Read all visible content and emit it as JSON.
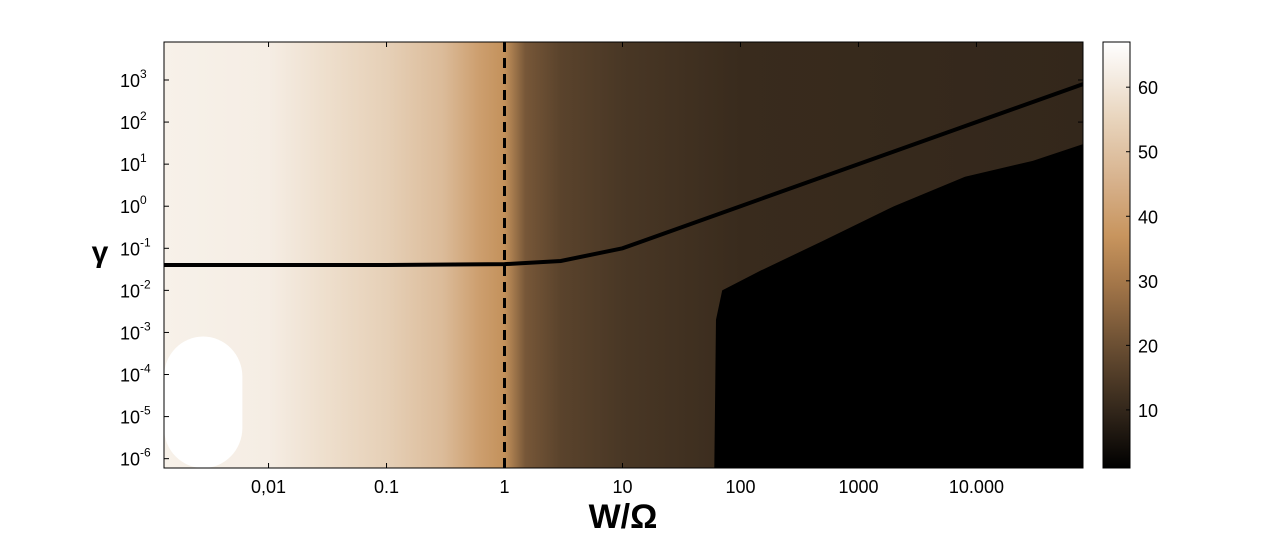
{
  "chart_data": {
    "type": "heatmap",
    "xlabel": "W/Ω",
    "ylabel": "γ",
    "x_scale": "log",
    "y_scale": "log",
    "xlim": [
      0.0013,
      80000
    ],
    "ylim": [
      6e-07,
      8000
    ],
    "x_ticks": [
      {
        "value": 0.01,
        "label": "0,01"
      },
      {
        "value": 0.1,
        "label": "0.1"
      },
      {
        "value": 1,
        "label": "1"
      },
      {
        "value": 10,
        "label": "10"
      },
      {
        "value": 100,
        "label": "100"
      },
      {
        "value": 1000,
        "label": "1000"
      },
      {
        "value": 10000,
        "label": "10.000"
      }
    ],
    "y_ticks": [
      {
        "exp": 3,
        "base": "10",
        "sup": "3"
      },
      {
        "exp": 2,
        "base": "10",
        "sup": "2"
      },
      {
        "exp": 1,
        "base": "10",
        "sup": "1"
      },
      {
        "exp": 0,
        "base": "10",
        "sup": "0"
      },
      {
        "exp": -1,
        "base": "10",
        "sup": "-1"
      },
      {
        "exp": -2,
        "base": "10",
        "sup": "-2"
      },
      {
        "exp": -3,
        "base": "10",
        "sup": "-3"
      },
      {
        "exp": -4,
        "base": "10",
        "sup": "-4"
      },
      {
        "exp": -5,
        "base": "10",
        "sup": "-5"
      },
      {
        "exp": -6,
        "base": "10",
        "sup": "-6"
      }
    ],
    "colorbar": {
      "min": 1,
      "max": 67,
      "ticks": [
        {
          "value": 10,
          "label": "10"
        },
        {
          "value": 20,
          "label": "20"
        },
        {
          "value": 30,
          "label": "30"
        },
        {
          "value": 40,
          "label": "40"
        },
        {
          "value": 50,
          "label": "50"
        },
        {
          "value": 60,
          "label": "60"
        }
      ],
      "colors": [
        {
          "value": 1,
          "color": "#000000"
        },
        {
          "value": 10,
          "color": "#33271b"
        },
        {
          "value": 20,
          "color": "#6b4f33"
        },
        {
          "value": 30,
          "color": "#a6784a"
        },
        {
          "value": 37,
          "color": "#c8955e"
        },
        {
          "value": 45,
          "color": "#d6b08a"
        },
        {
          "value": 55,
          "color": "#e8d4bc"
        },
        {
          "value": 62,
          "color": "#f5ede4"
        },
        {
          "value": 67,
          "color": "#ffffff"
        }
      ]
    },
    "x_colour_profile": [
      {
        "x": 0.0013,
        "value": 63
      },
      {
        "x": 0.01,
        "value": 62
      },
      {
        "x": 0.03,
        "value": 58
      },
      {
        "x": 0.1,
        "value": 54
      },
      {
        "x": 0.3,
        "value": 48
      },
      {
        "x": 0.6,
        "value": 40
      },
      {
        "x": 1,
        "value": 36
      },
      {
        "x": 1.5,
        "value": 22
      },
      {
        "x": 3,
        "value": 17
      },
      {
        "x": 10,
        "value": 14
      },
      {
        "x": 100,
        "value": 11
      },
      {
        "x": 80000,
        "value": 10
      }
    ],
    "white_region": {
      "x_max": 0.006,
      "y_max": 0.0008,
      "value": 67
    },
    "black_region_boundary": [
      {
        "x": 60,
        "y": 6e-07
      },
      {
        "x": 62,
        "y": 0.002
      },
      {
        "x": 70,
        "y": 0.01
      },
      {
        "x": 150,
        "y": 0.03
      },
      {
        "x": 500,
        "y": 0.15
      },
      {
        "x": 2000,
        "y": 1
      },
      {
        "x": 8000,
        "y": 5
      },
      {
        "x": 30000,
        "y": 12
      },
      {
        "x": 80000,
        "y": 30
      }
    ],
    "black_region_value": 1,
    "solid_line": [
      {
        "x": 0.0013,
        "y": 0.04
      },
      {
        "x": 0.1,
        "y": 0.04
      },
      {
        "x": 1,
        "y": 0.042
      },
      {
        "x": 3,
        "y": 0.05
      },
      {
        "x": 10,
        "y": 0.1
      },
      {
        "x": 100,
        "y": 1
      },
      {
        "x": 1000,
        "y": 10
      },
      {
        "x": 10000,
        "y": 100
      },
      {
        "x": 80000,
        "y": 800
      }
    ],
    "dashed_line": {
      "x": 1
    }
  }
}
